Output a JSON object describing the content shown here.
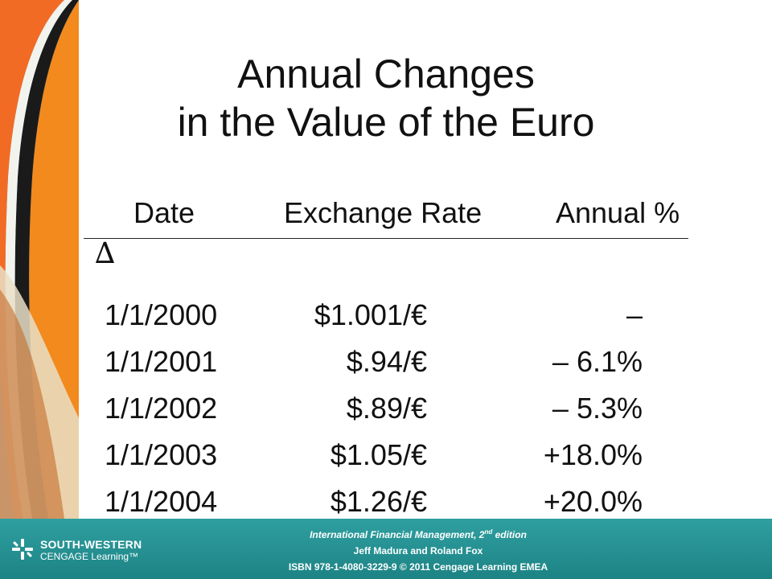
{
  "slide": {
    "title_line1": "Annual Changes",
    "title_line2": "in the Value of the Euro"
  },
  "table": {
    "headers": {
      "date": "Date",
      "rate": "Exchange Rate",
      "pct": "Annual %",
      "delta": "∆"
    },
    "rows": [
      {
        "date": "1/1/2000",
        "rate": "$1.001/€",
        "pct": "–"
      },
      {
        "date": "1/1/2001",
        "rate": "$.94/€",
        "pct": "– 6.1%"
      },
      {
        "date": "1/1/2002",
        "rate": "$.89/€",
        "pct": "– 5.3%"
      },
      {
        "date": "1/1/2003",
        "rate": "$1.05/€",
        "pct": "+18.0%"
      },
      {
        "date": "1/1/2004",
        "rate": "$1.26/€",
        "pct": "+20.0%"
      }
    ]
  },
  "footer": {
    "logo_top": "SOUTH-WESTERN",
    "logo_bottom": "CENGAGE Learning™",
    "book_title": "International Financial Management, 2",
    "edition_sup": "nd",
    "edition_rest": " edition",
    "authors": "Jeff Madura and Roland Fox",
    "isbn": "ISBN 978-1-4080-3229-9 © 2011 Cengage Learning EMEA"
  },
  "colors": {
    "footer": "#2f9fa0",
    "text": "#111111",
    "accent_orange": "#f28a1e"
  }
}
